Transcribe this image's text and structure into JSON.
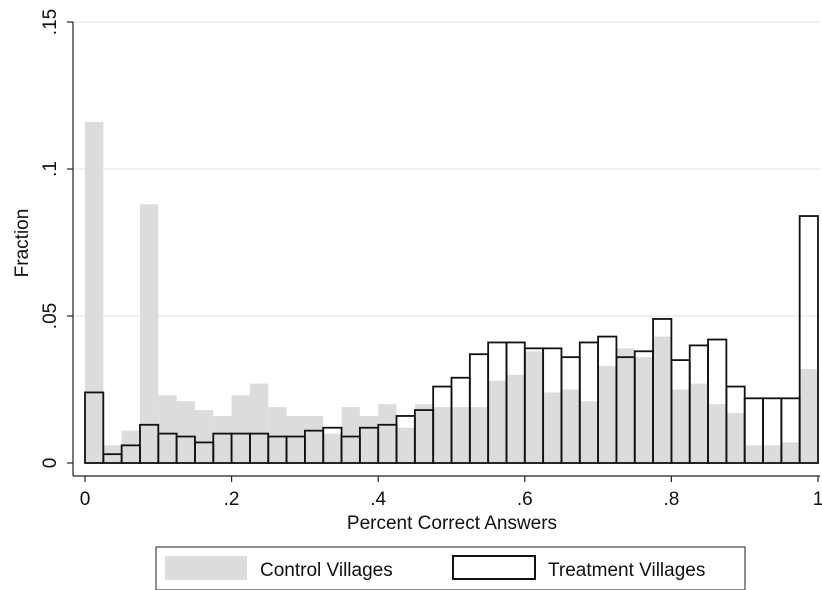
{
  "chart_data": {
    "type": "bar",
    "xlabel": "Percent Correct Answers",
    "ylabel": "Fraction",
    "xlim": [
      0,
      1
    ],
    "ylim": [
      0,
      0.15
    ],
    "xticks": [
      0,
      0.2,
      0.4,
      0.6,
      0.8,
      1
    ],
    "xtick_labels": [
      "0",
      ".2",
      ".4",
      ".6",
      ".8",
      "1"
    ],
    "yticks": [
      0,
      0.05,
      0.1,
      0.15
    ],
    "ytick_labels": [
      "0",
      ".05",
      ".1",
      ".15"
    ],
    "grid": true,
    "legend_position": "bottom",
    "bin_width": 0.025,
    "bin_starts": [
      0,
      0.025,
      0.05,
      0.075,
      0.1,
      0.125,
      0.15,
      0.175,
      0.2,
      0.225,
      0.25,
      0.275,
      0.3,
      0.325,
      0.35,
      0.375,
      0.4,
      0.425,
      0.45,
      0.475,
      0.5,
      0.525,
      0.55,
      0.575,
      0.6,
      0.625,
      0.65,
      0.675,
      0.7,
      0.725,
      0.75,
      0.775,
      0.8,
      0.825,
      0.85,
      0.875,
      0.9,
      0.925,
      0.95,
      0.975
    ],
    "series": [
      {
        "name": "Control Villages",
        "style": "filled",
        "color": "#dcdcdc",
        "values": [
          0.116,
          0.006,
          0.011,
          0.088,
          0.023,
          0.021,
          0.018,
          0.016,
          0.023,
          0.027,
          0.019,
          0.016,
          0.016,
          0.01,
          0.019,
          0.016,
          0.02,
          0.012,
          0.02,
          0.019,
          0.019,
          0.019,
          0.028,
          0.03,
          0.038,
          0.024,
          0.025,
          0.021,
          0.033,
          0.039,
          0.036,
          0.043,
          0.025,
          0.027,
          0.02,
          0.017,
          0.006,
          0.006,
          0.007,
          0.032
        ]
      },
      {
        "name": "Treatment Villages",
        "style": "outline",
        "color": "#111111",
        "values": [
          0.024,
          0.003,
          0.006,
          0.013,
          0.01,
          0.009,
          0.007,
          0.01,
          0.01,
          0.01,
          0.009,
          0.009,
          0.011,
          0.012,
          0.009,
          0.012,
          0.013,
          0.016,
          0.018,
          0.026,
          0.029,
          0.037,
          0.041,
          0.041,
          0.039,
          0.039,
          0.036,
          0.041,
          0.043,
          0.036,
          0.038,
          0.049,
          0.035,
          0.04,
          0.042,
          0.026,
          0.022,
          0.022,
          0.022,
          0.084
        ]
      }
    ]
  }
}
